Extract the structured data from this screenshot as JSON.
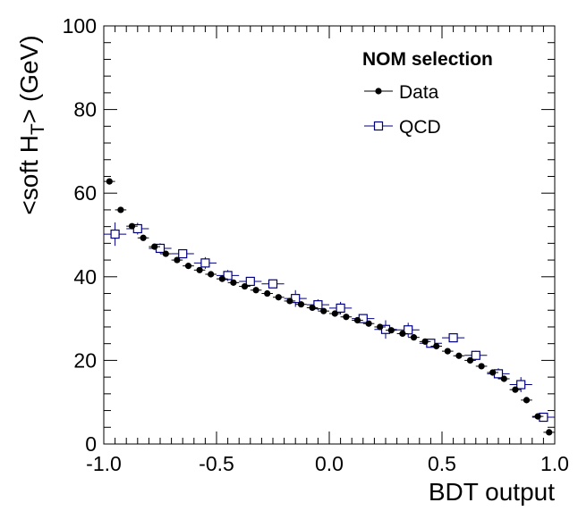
{
  "chart_data": {
    "type": "scatter",
    "xlabel": "BDT output",
    "ylabel_main": "<soft H",
    "ylabel_sub": "T",
    "ylabel_tail": "> (GeV)",
    "xlim": [
      -1.0,
      1.0
    ],
    "ylim": [
      0,
      100
    ],
    "x_ticks": [
      -1.0,
      -0.5,
      0.0,
      0.5,
      1.0
    ],
    "x_tick_labels": [
      "-1.0",
      "-0.5",
      "0.0",
      "0.5",
      "1.0"
    ],
    "y_ticks": [
      0,
      20,
      40,
      60,
      80,
      100
    ],
    "y_tick_labels": [
      "0",
      "20",
      "40",
      "60",
      "80",
      "100"
    ],
    "legend": {
      "title": "NOM selection",
      "position": "top-right",
      "entries": [
        "Data",
        "QCD"
      ]
    },
    "series": [
      {
        "name": "Data",
        "marker": "filled-circle",
        "color": "#000000",
        "x_err": 0.025,
        "x": [
          -0.975,
          -0.925,
          -0.875,
          -0.825,
          -0.775,
          -0.725,
          -0.675,
          -0.625,
          -0.575,
          -0.525,
          -0.475,
          -0.425,
          -0.375,
          -0.325,
          -0.275,
          -0.225,
          -0.175,
          -0.125,
          -0.075,
          -0.025,
          0.025,
          0.075,
          0.125,
          0.175,
          0.225,
          0.275,
          0.325,
          0.375,
          0.425,
          0.475,
          0.525,
          0.575,
          0.625,
          0.675,
          0.725,
          0.775,
          0.825,
          0.875,
          0.925,
          0.975
        ],
        "y": [
          62.8,
          56.0,
          52.1,
          49.3,
          47.2,
          45.5,
          44.0,
          42.6,
          41.6,
          40.6,
          39.5,
          38.6,
          37.7,
          36.8,
          36.0,
          35.1,
          34.2,
          33.4,
          32.6,
          31.8,
          31.2,
          30.4,
          29.6,
          28.8,
          28.0,
          27.2,
          26.4,
          25.5,
          24.5,
          23.4,
          22.2,
          21.1,
          20.0,
          18.6,
          17.1,
          15.6,
          13.0,
          10.5,
          6.6,
          2.8
        ]
      },
      {
        "name": "QCD",
        "marker": "open-square",
        "color": "#00007f",
        "x_err": 0.05,
        "x": [
          -0.95,
          -0.85,
          -0.75,
          -0.65,
          -0.55,
          -0.45,
          -0.35,
          -0.25,
          -0.15,
          -0.05,
          0.05,
          0.15,
          0.25,
          0.35,
          0.45,
          0.55,
          0.65,
          0.75,
          0.85,
          0.95
        ],
        "y": [
          50.2,
          51.5,
          46.8,
          45.5,
          43.3,
          40.3,
          38.9,
          38.3,
          34.8,
          33.3,
          32.5,
          30.0,
          27.4,
          27.3,
          24.1,
          25.4,
          21.2,
          16.8,
          14.2,
          6.4
        ],
        "y_err": [
          2.8,
          1.4,
          1.2,
          1.0,
          1.4,
          1.3,
          1.0,
          1.0,
          2.0,
          1.3,
          1.5,
          1.0,
          2.2,
          1.7,
          1.0,
          1.0,
          1.1,
          1.3,
          1.8,
          1.0
        ]
      }
    ]
  }
}
